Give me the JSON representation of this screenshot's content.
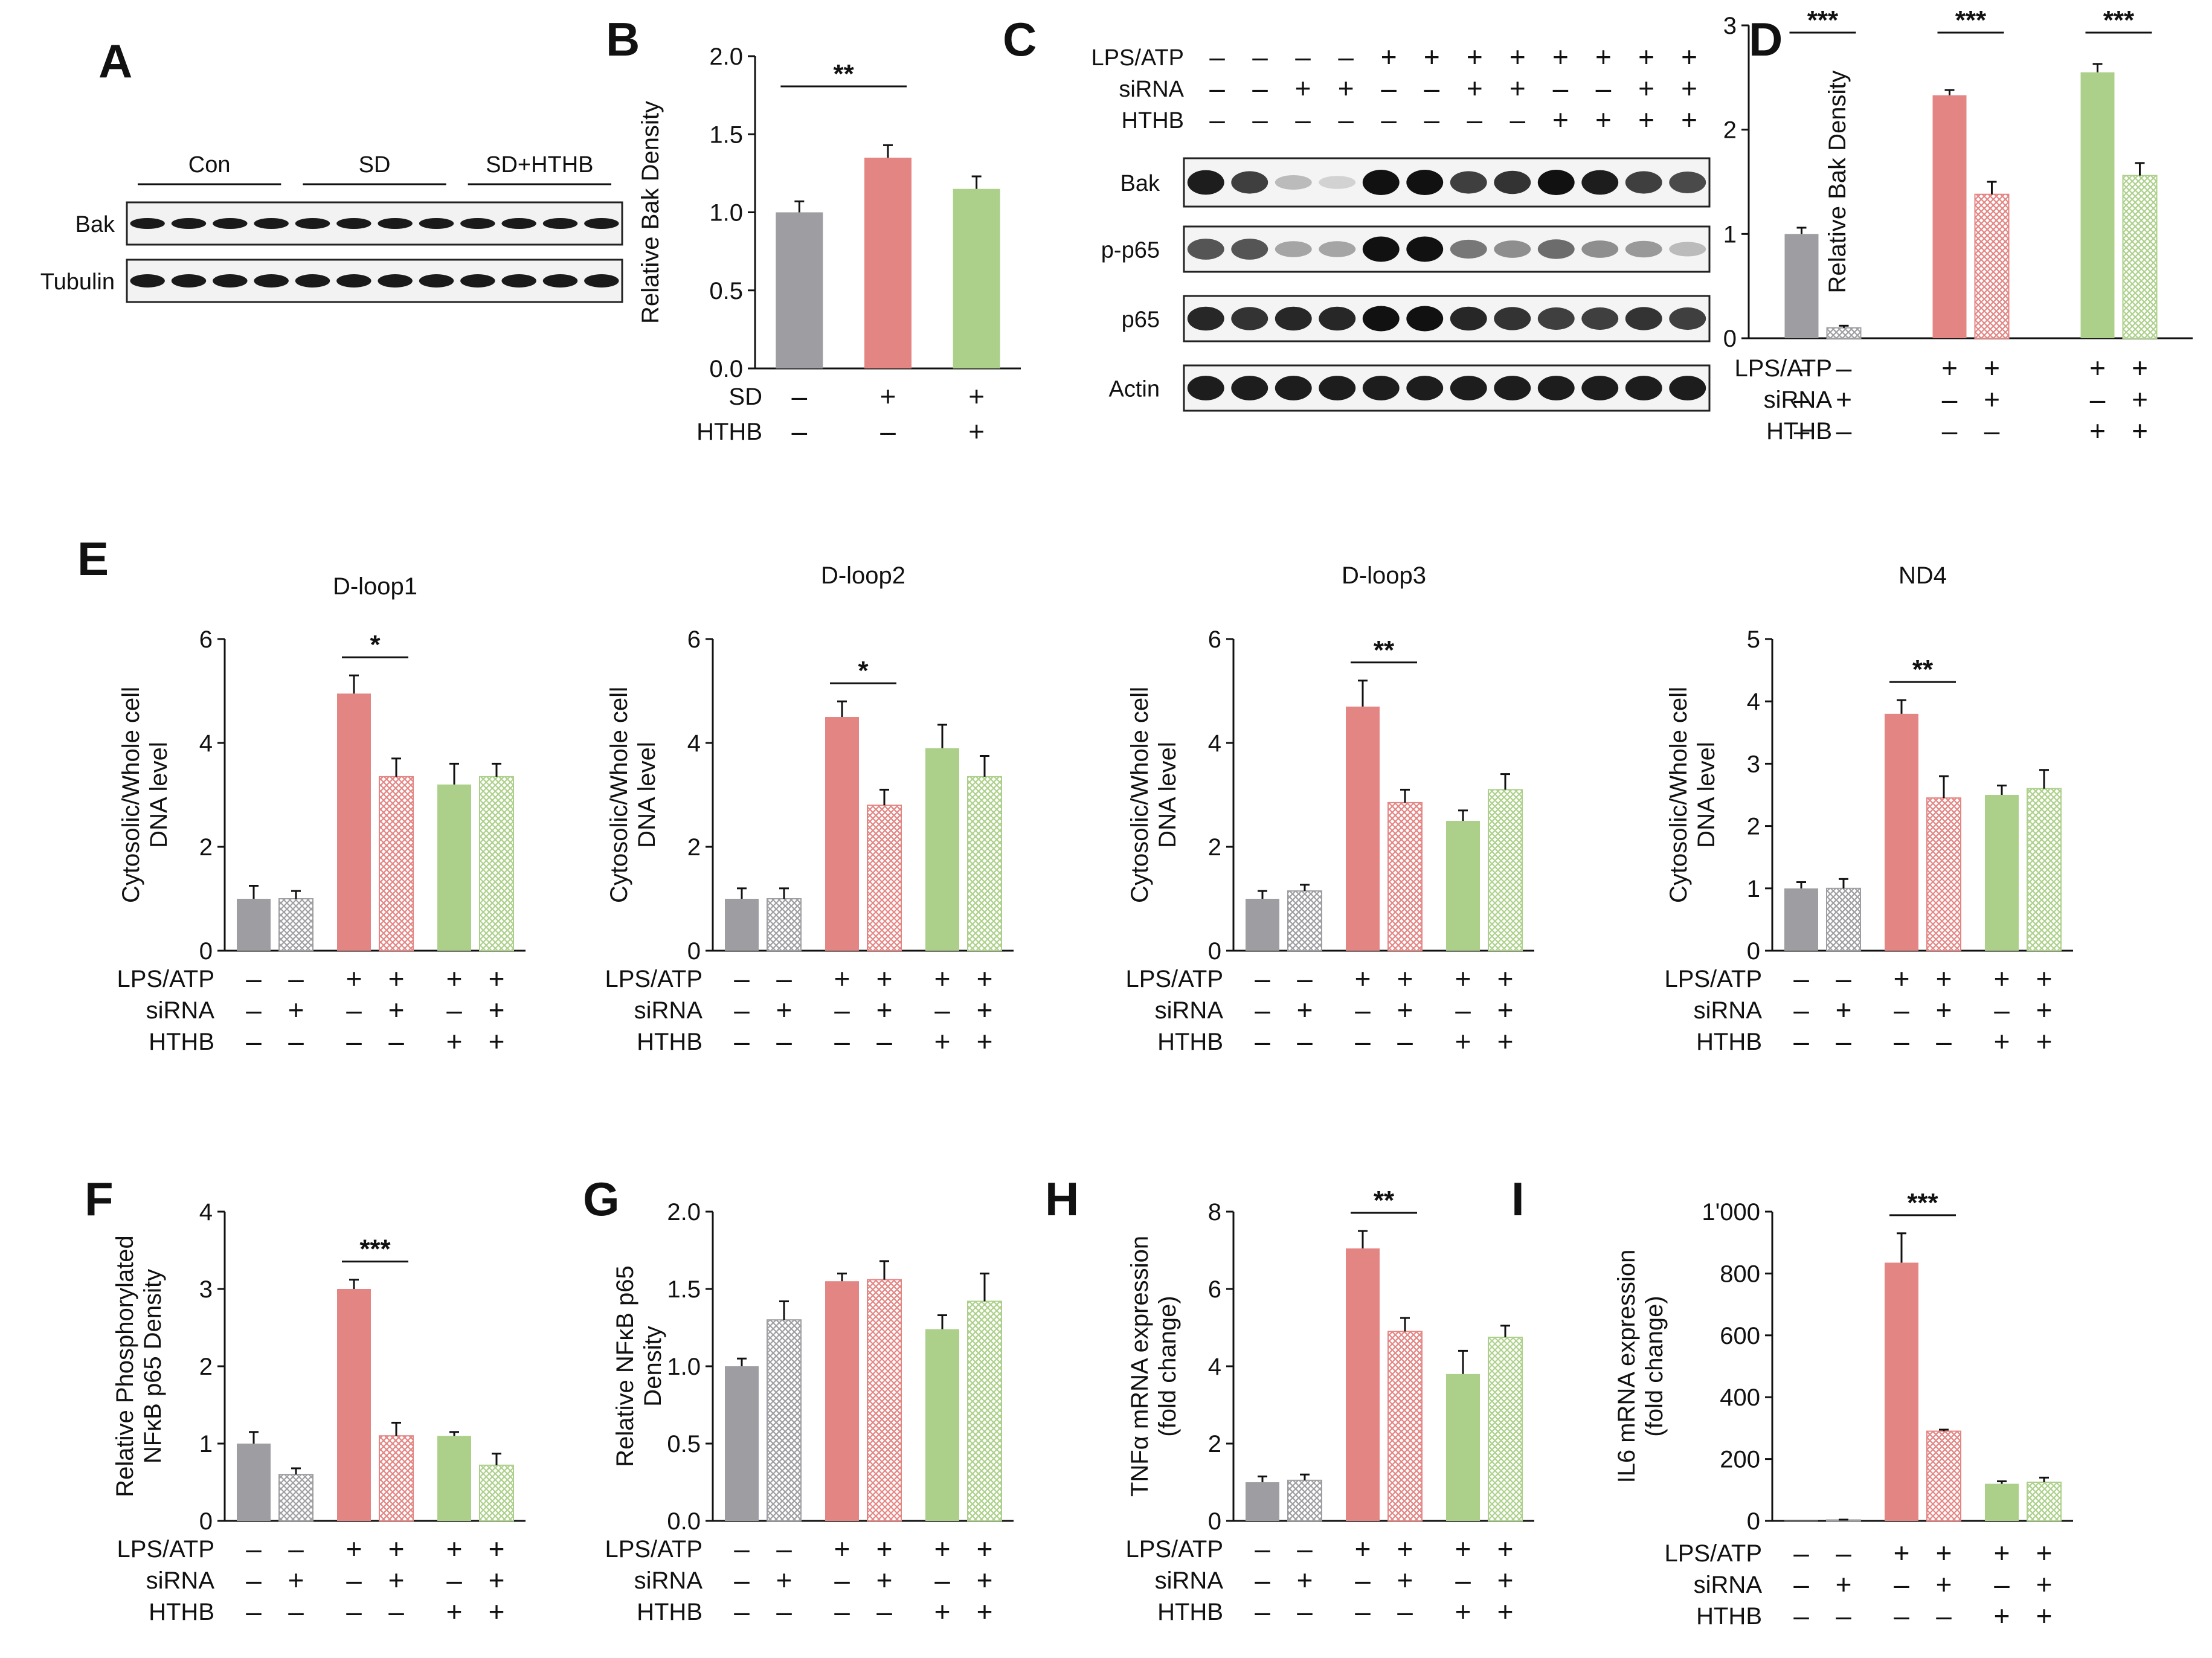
{
  "colors": {
    "gray": "#9e9ea2",
    "red": "#e38583",
    "green": "#acd08a",
    "axis": "#111111"
  },
  "panels": {
    "A": {
      "letter": "A",
      "groups": [
        "Con",
        "SD",
        "SD+HTHB"
      ],
      "rows": [
        "Bak",
        "Tubulin"
      ]
    },
    "C": {
      "letter": "C",
      "conditions": [
        {
          "label": "LPS/ATP",
          "signs": [
            "–",
            "–",
            "–",
            "–",
            "+",
            "+",
            "+",
            "+",
            "+",
            "+",
            "+",
            "+"
          ]
        },
        {
          "label": "siRNA",
          "signs": [
            "–",
            "–",
            "+",
            "+",
            "–",
            "–",
            "+",
            "+",
            "–",
            "–",
            "+",
            "+"
          ]
        },
        {
          "label": "HTHB",
          "signs": [
            "–",
            "–",
            "–",
            "–",
            "–",
            "–",
            "–",
            "–",
            "+",
            "+",
            "+",
            "+"
          ]
        }
      ],
      "rows": [
        "Bak",
        "p-p65",
        "p65",
        "Actin"
      ]
    }
  },
  "chart_data": [
    {
      "id": "B",
      "letter": "B",
      "type": "bar",
      "title": "",
      "ylabel": "Relative Bak Density",
      "xlabel": "",
      "ylim": [
        0,
        2.0
      ],
      "yticks": [
        0.0,
        0.5,
        1.0,
        1.5,
        2.0
      ],
      "ytick_labels": [
        "0.0",
        "0.5",
        "1.0",
        "1.5",
        "2.0"
      ],
      "categories": [
        "1",
        "2",
        "3"
      ],
      "values": [
        1.0,
        1.35,
        1.15
      ],
      "errors": [
        0.07,
        0.08,
        0.08
      ],
      "colors": [
        "gray",
        "red",
        "green"
      ],
      "hatch": [
        false,
        false,
        false
      ],
      "conditions": [
        {
          "label": "SD",
          "signs": [
            "–",
            "+",
            "+"
          ]
        },
        {
          "label": "HTHB",
          "signs": [
            "–",
            "–",
            "+"
          ]
        }
      ],
      "annotations": [
        {
          "from": 0,
          "to": 1,
          "text": "**"
        }
      ]
    },
    {
      "id": "D",
      "letter": "D",
      "type": "bar",
      "title": "",
      "ylabel": "Relative Bak Density",
      "xlabel": "",
      "ylim": [
        0,
        3
      ],
      "yticks": [
        0,
        1,
        2,
        3
      ],
      "ytick_labels": [
        "0",
        "1",
        "2",
        "3"
      ],
      "categories": [
        "1",
        "2",
        "3",
        "4",
        "5",
        "6"
      ],
      "values": [
        1.0,
        0.1,
        2.33,
        1.38,
        2.55,
        1.56
      ],
      "errors": [
        0.06,
        0.02,
        0.05,
        0.12,
        0.08,
        0.12
      ],
      "colors": [
        "gray",
        "gray",
        "red",
        "red",
        "green",
        "green"
      ],
      "hatch": [
        false,
        true,
        false,
        true,
        false,
        true
      ],
      "conditions": [
        {
          "label": "LPS/ATP",
          "signs": [
            "–",
            "–",
            "+",
            "+",
            "+",
            "+"
          ]
        },
        {
          "label": "siRNA",
          "signs": [
            "–",
            "+",
            "–",
            "+",
            "–",
            "+"
          ]
        },
        {
          "label": "HTHB",
          "signs": [
            "–",
            "–",
            "–",
            "–",
            "+",
            "+"
          ]
        }
      ],
      "annotations": [
        {
          "from": 0,
          "to": 1,
          "text": "***"
        },
        {
          "from": 2,
          "to": 3,
          "text": "***"
        },
        {
          "from": 4,
          "to": 5,
          "text": "***"
        }
      ]
    },
    {
      "id": "E1",
      "letter": "E",
      "type": "bar",
      "title": "D-loop1",
      "ylabel": "Cytosolic/Whole cell DNA level",
      "xlabel": "",
      "ylim": [
        0,
        6
      ],
      "yticks": [
        0,
        2,
        4,
        6
      ],
      "ytick_labels": [
        "0",
        "2",
        "4",
        "6"
      ],
      "categories": [
        "1",
        "2",
        "3",
        "4",
        "5",
        "6"
      ],
      "values": [
        1.0,
        1.0,
        4.95,
        3.35,
        3.2,
        3.35
      ],
      "errors": [
        0.25,
        0.15,
        0.35,
        0.35,
        0.4,
        0.25
      ],
      "colors": [
        "gray",
        "gray",
        "red",
        "red",
        "green",
        "green"
      ],
      "hatch": [
        false,
        true,
        false,
        true,
        false,
        true
      ],
      "conditions": [
        {
          "label": "LPS/ATP",
          "signs": [
            "–",
            "–",
            "+",
            "+",
            "+",
            "+"
          ]
        },
        {
          "label": "siRNA",
          "signs": [
            "–",
            "+",
            "–",
            "+",
            "–",
            "+"
          ]
        },
        {
          "label": "HTHB",
          "signs": [
            "–",
            "–",
            "–",
            "–",
            "+",
            "+"
          ]
        }
      ],
      "annotations": [
        {
          "from": 2,
          "to": 3,
          "text": "*"
        }
      ]
    },
    {
      "id": "E2",
      "letter": "",
      "type": "bar",
      "title": "D-loop2",
      "ylabel": "Cytosolic/Whole cell DNA level",
      "xlabel": "",
      "ylim": [
        0,
        6
      ],
      "yticks": [
        0,
        2,
        4,
        6
      ],
      "ytick_labels": [
        "0",
        "2",
        "4",
        "6"
      ],
      "categories": [
        "1",
        "2",
        "3",
        "4",
        "5",
        "6"
      ],
      "values": [
        1.0,
        1.0,
        4.5,
        2.8,
        3.9,
        3.35
      ],
      "errors": [
        0.2,
        0.2,
        0.3,
        0.3,
        0.45,
        0.4
      ],
      "colors": [
        "gray",
        "gray",
        "red",
        "red",
        "green",
        "green"
      ],
      "hatch": [
        false,
        true,
        false,
        true,
        false,
        true
      ],
      "conditions": [
        {
          "label": "LPS/ATP",
          "signs": [
            "–",
            "–",
            "+",
            "+",
            "+",
            "+"
          ]
        },
        {
          "label": "siRNA",
          "signs": [
            "–",
            "+",
            "–",
            "+",
            "–",
            "+"
          ]
        },
        {
          "label": "HTHB",
          "signs": [
            "–",
            "–",
            "–",
            "–",
            "+",
            "+"
          ]
        }
      ],
      "annotations": [
        {
          "from": 2,
          "to": 3,
          "text": "*"
        }
      ]
    },
    {
      "id": "E3",
      "letter": "",
      "type": "bar",
      "title": "D-loop3",
      "ylabel": "Cytosolic/Whole cell DNA level",
      "xlabel": "",
      "ylim": [
        0,
        6
      ],
      "yticks": [
        0,
        2,
        4,
        6
      ],
      "ytick_labels": [
        "0",
        "2",
        "4",
        "6"
      ],
      "categories": [
        "1",
        "2",
        "3",
        "4",
        "5",
        "6"
      ],
      "values": [
        1.0,
        1.15,
        4.7,
        2.85,
        2.5,
        3.1
      ],
      "errors": [
        0.15,
        0.12,
        0.5,
        0.25,
        0.2,
        0.3
      ],
      "colors": [
        "gray",
        "gray",
        "red",
        "red",
        "green",
        "green"
      ],
      "hatch": [
        false,
        true,
        false,
        true,
        false,
        true
      ],
      "conditions": [
        {
          "label": "LPS/ATP",
          "signs": [
            "–",
            "–",
            "+",
            "+",
            "+",
            "+"
          ]
        },
        {
          "label": "siRNA",
          "signs": [
            "–",
            "+",
            "–",
            "+",
            "–",
            "+"
          ]
        },
        {
          "label": "HTHB",
          "signs": [
            "–",
            "–",
            "–",
            "–",
            "+",
            "+"
          ]
        }
      ],
      "annotations": [
        {
          "from": 2,
          "to": 3,
          "text": "**"
        }
      ]
    },
    {
      "id": "E4",
      "letter": "",
      "type": "bar",
      "title": "ND4",
      "ylabel": "Cytosolic/Whole cell DNA level",
      "xlabel": "",
      "ylim": [
        0,
        5
      ],
      "yticks": [
        0,
        1,
        2,
        3,
        4,
        5
      ],
      "ytick_labels": [
        "0",
        "1",
        "2",
        "3",
        "4",
        "5"
      ],
      "categories": [
        "1",
        "2",
        "3",
        "4",
        "5",
        "6"
      ],
      "values": [
        1.0,
        1.0,
        3.8,
        2.45,
        2.5,
        2.6
      ],
      "errors": [
        0.1,
        0.15,
        0.22,
        0.35,
        0.15,
        0.3
      ],
      "colors": [
        "gray",
        "gray",
        "red",
        "red",
        "green",
        "green"
      ],
      "hatch": [
        false,
        true,
        false,
        true,
        false,
        true
      ],
      "conditions": [
        {
          "label": "LPS/ATP",
          "signs": [
            "–",
            "–",
            "+",
            "+",
            "+",
            "+"
          ]
        },
        {
          "label": "siRNA",
          "signs": [
            "–",
            "+",
            "–",
            "+",
            "–",
            "+"
          ]
        },
        {
          "label": "HTHB",
          "signs": [
            "–",
            "–",
            "–",
            "–",
            "+",
            "+"
          ]
        }
      ],
      "annotations": [
        {
          "from": 2,
          "to": 3,
          "text": "**"
        }
      ]
    },
    {
      "id": "F",
      "letter": "F",
      "type": "bar",
      "title": "",
      "ylabel": "Relative Phosphorylated NFκB p65 Density",
      "xlabel": "",
      "ylim": [
        0,
        4
      ],
      "yticks": [
        0,
        1,
        2,
        3,
        4
      ],
      "ytick_labels": [
        "0",
        "1",
        "2",
        "3",
        "4"
      ],
      "categories": [
        "1",
        "2",
        "3",
        "4",
        "5",
        "6"
      ],
      "values": [
        1.0,
        0.6,
        3.0,
        1.1,
        1.1,
        0.72
      ],
      "errors": [
        0.15,
        0.08,
        0.12,
        0.17,
        0.05,
        0.15
      ],
      "colors": [
        "gray",
        "gray",
        "red",
        "red",
        "green",
        "green"
      ],
      "hatch": [
        false,
        true,
        false,
        true,
        false,
        true
      ],
      "conditions": [
        {
          "label": "LPS/ATP",
          "signs": [
            "–",
            "–",
            "+",
            "+",
            "+",
            "+"
          ]
        },
        {
          "label": "siRNA",
          "signs": [
            "–",
            "+",
            "–",
            "+",
            "–",
            "+"
          ]
        },
        {
          "label": "HTHB",
          "signs": [
            "–",
            "–",
            "–",
            "–",
            "+",
            "+"
          ]
        }
      ],
      "annotations": [
        {
          "from": 2,
          "to": 3,
          "text": "***"
        }
      ]
    },
    {
      "id": "G",
      "letter": "G",
      "type": "bar",
      "title": "",
      "ylabel": "Relative NFκB p65 Density",
      "xlabel": "",
      "ylim": [
        0,
        2.0
      ],
      "yticks": [
        0.0,
        0.5,
        1.0,
        1.5,
        2.0
      ],
      "ytick_labels": [
        "0.0",
        "0.5",
        "1.0",
        "1.5",
        "2.0"
      ],
      "categories": [
        "1",
        "2",
        "3",
        "4",
        "5",
        "6"
      ],
      "values": [
        1.0,
        1.3,
        1.55,
        1.56,
        1.24,
        1.42
      ],
      "errors": [
        0.05,
        0.12,
        0.05,
        0.12,
        0.09,
        0.18
      ],
      "colors": [
        "gray",
        "gray",
        "red",
        "red",
        "green",
        "green"
      ],
      "hatch": [
        false,
        true,
        false,
        true,
        false,
        true
      ],
      "conditions": [
        {
          "label": "LPS/ATP",
          "signs": [
            "–",
            "–",
            "+",
            "+",
            "+",
            "+"
          ]
        },
        {
          "label": "siRNA",
          "signs": [
            "–",
            "+",
            "–",
            "+",
            "–",
            "+"
          ]
        },
        {
          "label": "HTHB",
          "signs": [
            "–",
            "–",
            "–",
            "–",
            "+",
            "+"
          ]
        }
      ],
      "annotations": []
    },
    {
      "id": "H",
      "letter": "H",
      "type": "bar",
      "title": "",
      "ylabel": "TNFα mRNA expression (fold change)",
      "xlabel": "",
      "ylim": [
        0,
        8
      ],
      "yticks": [
        0,
        2,
        4,
        6,
        8
      ],
      "ytick_labels": [
        "0",
        "2",
        "4",
        "6",
        "8"
      ],
      "categories": [
        "1",
        "2",
        "3",
        "4",
        "5",
        "6"
      ],
      "values": [
        1.0,
        1.05,
        7.05,
        4.9,
        3.8,
        4.75
      ],
      "errors": [
        0.15,
        0.15,
        0.45,
        0.35,
        0.6,
        0.3
      ],
      "colors": [
        "gray",
        "gray",
        "red",
        "red",
        "green",
        "green"
      ],
      "hatch": [
        false,
        true,
        false,
        true,
        false,
        true
      ],
      "conditions": [
        {
          "label": "LPS/ATP",
          "signs": [
            "–",
            "–",
            "+",
            "+",
            "+",
            "+"
          ]
        },
        {
          "label": "siRNA",
          "signs": [
            "–",
            "+",
            "–",
            "+",
            "–",
            "+"
          ]
        },
        {
          "label": "HTHB",
          "signs": [
            "–",
            "–",
            "–",
            "–",
            "+",
            "+"
          ]
        }
      ],
      "annotations": [
        {
          "from": 2,
          "to": 3,
          "text": "**"
        }
      ]
    },
    {
      "id": "I",
      "letter": "I",
      "type": "bar",
      "title": "",
      "ylabel": "IL6 mRNA expression (fold change)",
      "xlabel": "",
      "ylim": [
        0,
        1000
      ],
      "yticks": [
        0,
        200,
        400,
        600,
        800,
        1000
      ],
      "ytick_labels": [
        "0",
        "200",
        "400",
        "600",
        "800",
        "1'000"
      ],
      "categories": [
        "1",
        "2",
        "3",
        "4",
        "5",
        "6"
      ],
      "values": [
        1,
        3,
        835,
        290,
        120,
        125
      ],
      "errors": [
        0,
        1,
        95,
        5,
        8,
        15
      ],
      "colors": [
        "gray",
        "gray",
        "red",
        "red",
        "green",
        "green"
      ],
      "hatch": [
        false,
        true,
        false,
        true,
        false,
        true
      ],
      "conditions": [
        {
          "label": "LPS/ATP",
          "signs": [
            "–",
            "–",
            "+",
            "+",
            "+",
            "+"
          ]
        },
        {
          "label": "siRNA",
          "signs": [
            "–",
            "+",
            "–",
            "+",
            "–",
            "+"
          ]
        },
        {
          "label": "HTHB",
          "signs": [
            "–",
            "–",
            "–",
            "–",
            "+",
            "+"
          ]
        }
      ],
      "annotations": [
        {
          "from": 2,
          "to": 3,
          "text": "***"
        }
      ]
    }
  ]
}
